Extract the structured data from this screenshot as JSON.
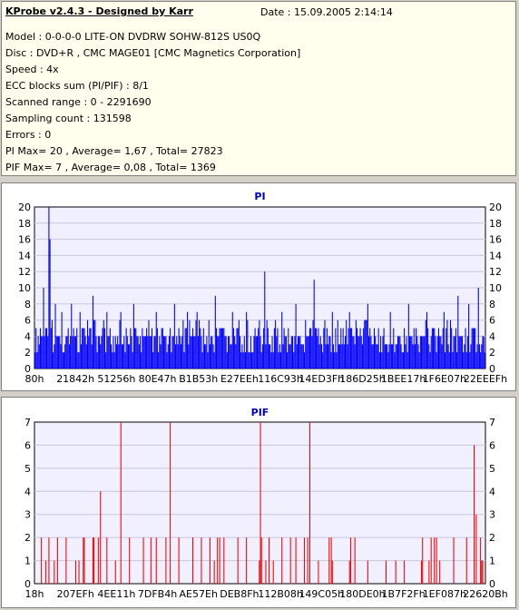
{
  "header": {
    "app_title": "KProbe v2.4.3 - Designed by Karr",
    "date": "Date : 15.09.2005 2:14:14"
  },
  "info_lines": [
    "Model : 0-0-0-0 LITE-ON DVDRW SOHW-812S  US0Q",
    "Disc : DVD+R , CMC MAGE01 [CMC Magnetics Corporation]",
    "Speed : 4x",
    "ECC blocks sum (PI/PIF) : 8/1",
    "Scanned range : 0 - 2291690",
    "Sampling count : 131598",
    "Errors : 0",
    "PI Max= 20 , Average= 1,67 , Total= 27823",
    "PIF Max= 7 , Average= 0,08 , Total= 1369"
  ],
  "colors": {
    "plot_bg": "#f0f0ff",
    "pi_bar": "#0000ff",
    "pif_bar": "#ff0000",
    "title_pi": "#0000c0",
    "title_pif": "#0000c0",
    "grid": "#c8c8dc"
  },
  "chart_data": [
    {
      "type": "bar",
      "title": "PI",
      "ylim": [
        0,
        20
      ],
      "yticks": [
        0,
        2,
        4,
        6,
        8,
        10,
        12,
        14,
        16,
        18,
        20
      ],
      "xticks": [
        "80h",
        "21842h",
        "51256h",
        "80E47h",
        "B1B53h",
        "E27EEh",
        "116C93h",
        "14ED3Fh",
        "186D25h",
        "1BEE17h",
        "1F6E07h",
        "22EEEFh"
      ],
      "grid": true,
      "baseline_level": 4,
      "peaks": [
        {
          "x": 0.03,
          "y": 20
        },
        {
          "x": 0.033,
          "y": 16
        },
        {
          "x": 0.02,
          "y": 10
        },
        {
          "x": 0.045,
          "y": 8
        },
        {
          "x": 0.06,
          "y": 7
        },
        {
          "x": 0.08,
          "y": 8
        },
        {
          "x": 0.1,
          "y": 7
        },
        {
          "x": 0.13,
          "y": 9
        },
        {
          "x": 0.16,
          "y": 7
        },
        {
          "x": 0.19,
          "y": 7
        },
        {
          "x": 0.22,
          "y": 8
        },
        {
          "x": 0.27,
          "y": 7
        },
        {
          "x": 0.31,
          "y": 8
        },
        {
          "x": 0.34,
          "y": 7
        },
        {
          "x": 0.36,
          "y": 7
        },
        {
          "x": 0.4,
          "y": 9
        },
        {
          "x": 0.44,
          "y": 7
        },
        {
          "x": 0.47,
          "y": 7
        },
        {
          "x": 0.51,
          "y": 12
        },
        {
          "x": 0.55,
          "y": 7
        },
        {
          "x": 0.58,
          "y": 8
        },
        {
          "x": 0.62,
          "y": 11
        },
        {
          "x": 0.66,
          "y": 7
        },
        {
          "x": 0.7,
          "y": 7
        },
        {
          "x": 0.74,
          "y": 8
        },
        {
          "x": 0.79,
          "y": 7
        },
        {
          "x": 0.83,
          "y": 8
        },
        {
          "x": 0.87,
          "y": 7
        },
        {
          "x": 0.91,
          "y": 7
        },
        {
          "x": 0.94,
          "y": 9
        },
        {
          "x": 0.965,
          "y": 8
        },
        {
          "x": 0.985,
          "y": 10
        }
      ]
    },
    {
      "type": "bar",
      "title": "PIF",
      "ylim": [
        0,
        7
      ],
      "yticks": [
        0,
        1,
        2,
        3,
        4,
        5,
        6,
        7
      ],
      "xticks": [
        "18h",
        "207EFh",
        "4EE11h",
        "7DFB4h",
        "AE57Eh",
        "DEB8Fh",
        "112B08h",
        "149C05h",
        "180DE0h",
        "1B7F2Fh",
        "1EF087h",
        "22620Bh"
      ],
      "grid": true,
      "peaks": [
        {
          "x": 0.015,
          "y": 2
        },
        {
          "x": 0.03,
          "y": 2
        },
        {
          "x": 0.05,
          "y": 2
        },
        {
          "x": 0.07,
          "y": 2
        },
        {
          "x": 0.09,
          "y": 1
        },
        {
          "x": 0.11,
          "y": 2
        },
        {
          "x": 0.13,
          "y": 2
        },
        {
          "x": 0.145,
          "y": 4
        },
        {
          "x": 0.16,
          "y": 2
        },
        {
          "x": 0.18,
          "y": 1
        },
        {
          "x": 0.19,
          "y": 7
        },
        {
          "x": 0.21,
          "y": 2
        },
        {
          "x": 0.24,
          "y": 2
        },
        {
          "x": 0.27,
          "y": 2
        },
        {
          "x": 0.29,
          "y": 2
        },
        {
          "x": 0.3,
          "y": 7
        },
        {
          "x": 0.32,
          "y": 2
        },
        {
          "x": 0.35,
          "y": 2
        },
        {
          "x": 0.37,
          "y": 2
        },
        {
          "x": 0.39,
          "y": 2
        },
        {
          "x": 0.42,
          "y": 2
        },
        {
          "x": 0.45,
          "y": 2
        },
        {
          "x": 0.47,
          "y": 2
        },
        {
          "x": 0.5,
          "y": 7
        },
        {
          "x": 0.52,
          "y": 2
        },
        {
          "x": 0.55,
          "y": 2
        },
        {
          "x": 0.58,
          "y": 2
        },
        {
          "x": 0.61,
          "y": 7
        },
        {
          "x": 0.63,
          "y": 1
        },
        {
          "x": 0.66,
          "y": 1
        },
        {
          "x": 0.7,
          "y": 1
        },
        {
          "x": 0.74,
          "y": 1
        },
        {
          "x": 0.78,
          "y": 1
        },
        {
          "x": 0.82,
          "y": 1
        },
        {
          "x": 0.86,
          "y": 1
        },
        {
          "x": 0.88,
          "y": 2
        },
        {
          "x": 0.9,
          "y": 1
        },
        {
          "x": 0.93,
          "y": 2
        },
        {
          "x": 0.96,
          "y": 2
        },
        {
          "x": 0.975,
          "y": 6
        },
        {
          "x": 0.98,
          "y": 3
        },
        {
          "x": 0.99,
          "y": 2
        }
      ]
    }
  ]
}
